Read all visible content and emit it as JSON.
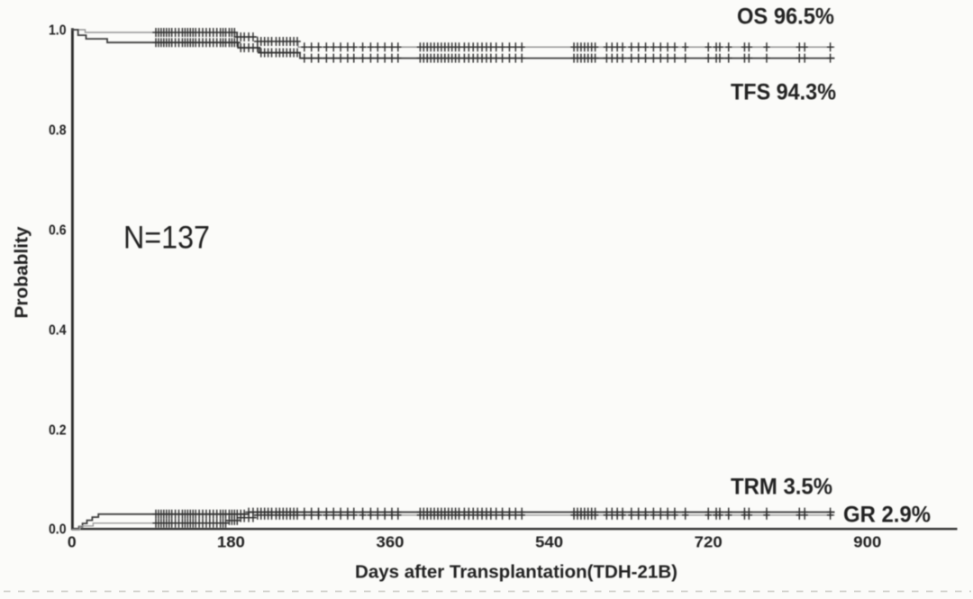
{
  "figure": {
    "background": "#fbfbf9",
    "axis_color": "#2d2d2d",
    "text_color": "#232323",
    "tick_color": "#3a3a3a"
  },
  "chart_data": {
    "type": "line",
    "subtype": "kaplan-meier-step",
    "title": "",
    "xlabel": "Days after Transplantation(TDH-21B)",
    "ylabel": "Probablity",
    "xlim": [
      0,
      1001
    ],
    "ylim": [
      0,
      1.0
    ],
    "grid": false,
    "legend_position": "annotations-at-line-ends",
    "sample_size": 137,
    "sample_size_label": "N=137",
    "x_ticks": [
      {
        "value": 0,
        "label": "0"
      },
      {
        "value": 180,
        "label": "180"
      },
      {
        "value": 360,
        "label": "360"
      },
      {
        "value": 540,
        "label": "540"
      },
      {
        "value": 720,
        "label": "720"
      },
      {
        "value": 900,
        "label": "900"
      }
    ],
    "y_ticks": [
      {
        "value": 1.0,
        "label": "1.0"
      },
      {
        "value": 0.8,
        "label": "0.8"
      },
      {
        "value": 0.6,
        "label": "0.6"
      },
      {
        "value": 0.4,
        "label": "0.4"
      },
      {
        "value": 0.2,
        "label": "0.2"
      },
      {
        "value": 0.0,
        "label": "0.0"
      }
    ],
    "series": [
      {
        "name": "OS",
        "label": "OS 96.5%",
        "final_value": "96.5%",
        "color": "#949494",
        "width": 1.4,
        "points": [
          [
            0,
            1.0
          ],
          [
            15,
            0.9946
          ],
          [
            186,
            0.9856
          ],
          [
            210,
            0.9766
          ],
          [
            256,
            0.9653
          ],
          [
            863,
            0.9653
          ]
        ]
      },
      {
        "name": "TFS",
        "label": "TFS 94.3%",
        "final_value": "94.3%",
        "color": "#3e3e3e",
        "width": 1.8,
        "points": [
          [
            0,
            1.0
          ],
          [
            7,
            0.989
          ],
          [
            16,
            0.9817
          ],
          [
            40,
            0.9744
          ],
          [
            188,
            0.964
          ],
          [
            212,
            0.9541
          ],
          [
            258,
            0.943
          ],
          [
            863,
            0.943
          ]
        ]
      },
      {
        "name": "TRM",
        "label": "TRM 3.5%",
        "final_value": "3.5%",
        "color": "#3e3e3e",
        "width": 1.8,
        "points": [
          [
            0,
            0.0
          ],
          [
            8,
            0.0062
          ],
          [
            12,
            0.0124
          ],
          [
            17,
            0.0187
          ],
          [
            23,
            0.025
          ],
          [
            30,
            0.031
          ],
          [
            200,
            0.035
          ],
          [
            863,
            0.035
          ]
        ]
      },
      {
        "name": "GR",
        "label": "GR 2.9%",
        "final_value": "2.9%",
        "color": "#9a9a9a",
        "width": 1.4,
        "points": [
          [
            0,
            0.0
          ],
          [
            9,
            0.0073
          ],
          [
            24,
            0.013
          ],
          [
            176,
            0.0183
          ],
          [
            189,
            0.024
          ],
          [
            207,
            0.029
          ],
          [
            863,
            0.029
          ]
        ]
      }
    ],
    "censor_days": [
      95,
      98,
      101,
      104,
      107,
      110,
      113,
      117,
      121,
      125,
      128,
      131,
      134,
      137,
      140,
      144,
      148,
      152,
      156,
      160,
      164,
      168,
      171,
      174,
      178,
      181,
      184,
      187,
      191,
      195,
      200,
      205,
      210,
      214,
      218,
      222,
      226,
      231,
      235,
      239,
      243,
      247,
      251,
      255,
      263,
      271,
      279,
      288,
      296,
      304,
      312,
      319,
      329,
      338,
      346,
      354,
      362,
      369,
      394,
      398,
      402,
      406,
      410,
      414,
      418,
      422,
      426,
      430,
      434,
      438,
      444,
      449,
      454,
      459,
      464,
      469,
      474,
      480,
      487,
      495,
      502,
      509,
      568,
      572,
      576,
      580,
      584,
      588,
      592,
      605,
      611,
      617,
      623,
      633,
      641,
      649,
      658,
      666,
      674,
      682,
      694,
      720,
      729,
      733,
      743,
      761,
      766,
      786,
      823,
      829,
      858
    ],
    "censor_mark": {
      "symbol": "plus",
      "color": "#2e2e2e",
      "half_height": 5.0,
      "half_width": 3.8,
      "stroke": 1.45
    },
    "annotations": [
      {
        "id": "os",
        "text": "OS 96.5%"
      },
      {
        "id": "tfs",
        "text": "TFS 94.3%"
      },
      {
        "id": "trm",
        "text": "TRM 3.5%"
      },
      {
        "id": "gr",
        "text": "GR 2.9%"
      },
      {
        "id": "n",
        "text": "N=137"
      }
    ]
  }
}
